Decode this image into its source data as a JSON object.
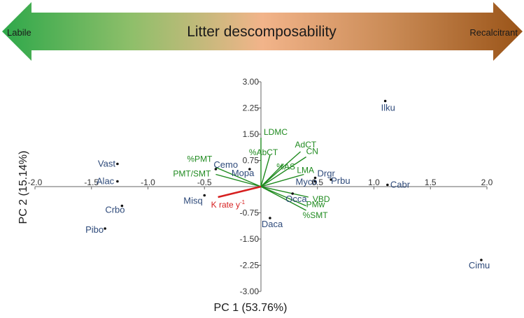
{
  "banner": {
    "title": "Litter descomposability",
    "left_label": "Labile",
    "right_label": "Recalcitrant",
    "gradient_colors": [
      "#2ea84a",
      "#8fbf6a",
      "#f2b48a",
      "#c98a55",
      "#9a5418"
    ]
  },
  "chart_data": {
    "type": "scatter",
    "subtype": "pca-biplot",
    "title": "",
    "xlabel": "PC 1 (53.76%)",
    "ylabel": "PC 2 (15.14%)",
    "xlim": [
      -2.0,
      2.0
    ],
    "ylim": [
      -3.0,
      3.0
    ],
    "x_ticks": [
      -2.0,
      -1.5,
      -1.0,
      -0.5,
      0.5,
      1.0,
      1.5,
      2.0
    ],
    "x_tick_labels": [
      "-2.0",
      "-1.5",
      "-1.0",
      "-0.5",
      "0.5",
      "1.0",
      "1.5",
      "2.0"
    ],
    "y_ticks": [
      3.0,
      2.25,
      1.5,
      0.75,
      -0.75,
      -1.5,
      -2.25,
      -3.0
    ],
    "y_tick_labels": [
      "3.00",
      "2.25",
      "1.50",
      "0.75",
      "-0.75",
      "-1.50",
      "-2.25",
      "-3.00"
    ],
    "grid": false,
    "colors": {
      "points": "#2e4a7a",
      "loadings": "#1f8a1f",
      "response": "#d61f1f",
      "axis": "#666666"
    },
    "points": [
      {
        "label": "Ilku",
        "x": 1.1,
        "y": 2.45
      },
      {
        "label": "Vast",
        "x": -1.27,
        "y": 0.65
      },
      {
        "label": "Alac",
        "x": -1.27,
        "y": 0.15
      },
      {
        "label": "Crbo",
        "x": -1.23,
        "y": -0.55
      },
      {
        "label": "Pibo",
        "x": -1.38,
        "y": -1.2
      },
      {
        "label": "Cemo",
        "x": -0.4,
        "y": 0.5
      },
      {
        "label": "Mopa",
        "x": -0.1,
        "y": 0.5
      },
      {
        "label": "Misq",
        "x": -0.5,
        "y": -0.25
      },
      {
        "label": "Drgr",
        "x": 0.48,
        "y": 0.25
      },
      {
        "label": "Myco",
        "x": 0.48,
        "y": 0.15
      },
      {
        "label": "Prbu",
        "x": 0.62,
        "y": 0.2
      },
      {
        "label": "Occa",
        "x": 0.28,
        "y": -0.2
      },
      {
        "label": "Daca",
        "x": 0.08,
        "y": -0.9
      },
      {
        "label": "Cabr",
        "x": 1.12,
        "y": 0.05
      },
      {
        "label": "Cimu",
        "x": 1.95,
        "y": -2.1
      }
    ],
    "loadings": [
      {
        "label": "LDMC",
        "x": 0.0,
        "y": 1.4
      },
      {
        "label": "%AbCT",
        "x": 0.08,
        "y": 0.9
      },
      {
        "label": "AdCT",
        "x": 0.35,
        "y": 1.0
      },
      {
        "label": "CN",
        "x": 0.4,
        "y": 0.85
      },
      {
        "label": "%AS",
        "x": 0.2,
        "y": 0.65
      },
      {
        "label": "LMA",
        "x": 0.38,
        "y": 0.35
      },
      {
        "label": "%PMT",
        "x": -0.4,
        "y": 0.55
      },
      {
        "label": "PMT/SMT",
        "x": -0.4,
        "y": 0.35
      },
      {
        "label": "VBD",
        "x": 0.42,
        "y": -0.3
      },
      {
        "label": "PMw",
        "x": 0.4,
        "y": -0.55
      },
      {
        "label": "%SMT",
        "x": 0.4,
        "y": -0.68
      }
    ],
    "response_vector": {
      "label": "K rate y-1",
      "label_main": "K rate y",
      "label_sup": "-1",
      "x": -0.38,
      "y": -0.3
    }
  }
}
